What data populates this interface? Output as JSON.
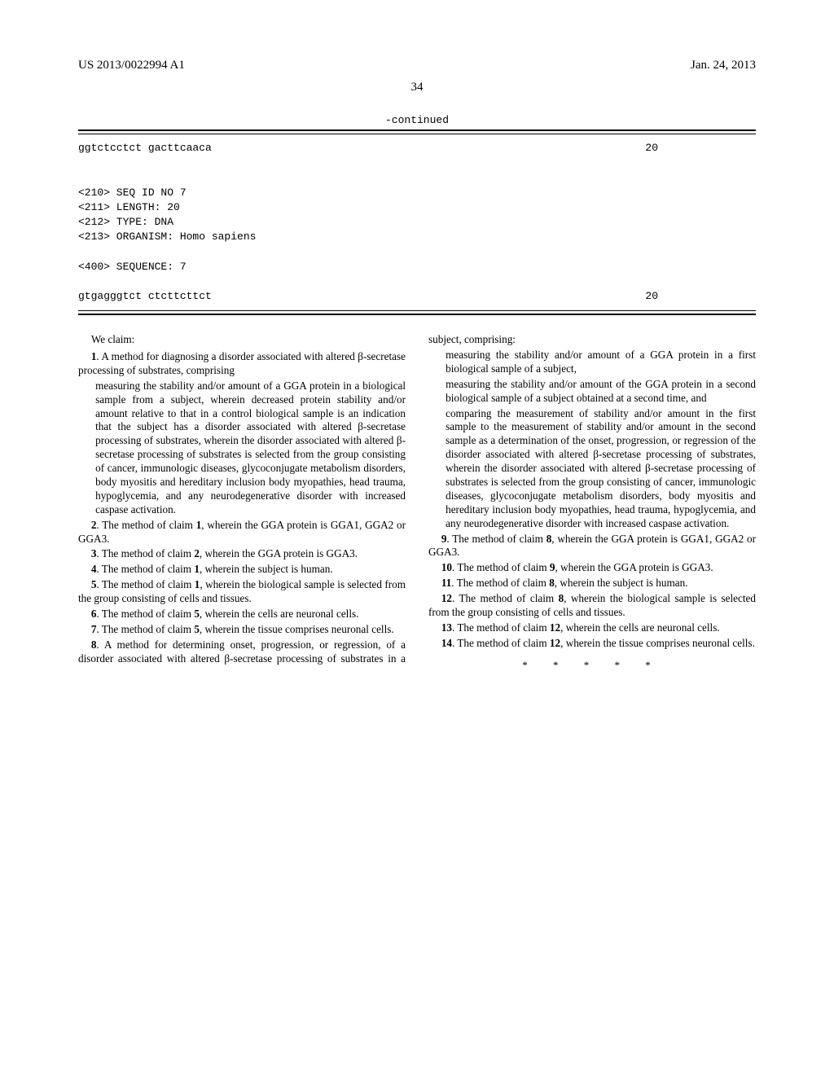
{
  "header": {
    "publication_number": "US 2013/0022994 A1",
    "date": "Jan. 24, 2013"
  },
  "page_number": "34",
  "sequence": {
    "continued_label": "-continued",
    "line1_seq": "ggtctcctct gacttcaaca",
    "line1_len": "20",
    "seq_id_tag": "<210> SEQ ID NO 7",
    "length_tag": "<211> LENGTH: 20",
    "type_tag": "<212> TYPE: DNA",
    "organism_tag": "<213> ORGANISM: Homo sapiens",
    "sequence_tag": "<400> SEQUENCE: 7",
    "line2_seq": "gtgagggtct ctcttcttct",
    "line2_len": "20"
  },
  "claims": {
    "intro": "We claim:",
    "c1_lead": "1. A method for diagnosing a disorder associated with altered β-secretase processing of substrates, comprising",
    "c1_body": "measuring the stability and/or amount of a GGA protein in a biological sample from a subject, wherein decreased protein stability and/or amount relative to that in a control biological sample is an indication that the subject has a disorder associated with altered β-secretase processing of substrates, wherein the disorder associated with altered β-secretase processing of substrates is selected from the group consisting of cancer, immunologic diseases, glycoconjugate metabolism disorders, body myositis and hereditary inclusion body myopathies, head trauma, hypoglycemia, and any neurodegenerative disorder with increased caspase activation.",
    "c2": "2. The method of claim 1, wherein the GGA protein is GGA1, GGA2 or GGA3.",
    "c3": "3. The method of claim 2, wherein the GGA protein is GGA3.",
    "c4": "4. The method of claim 1, wherein the subject is human.",
    "c5": "5. The method of claim 1, wherein the biological sample is selected from the group consisting of cells and tissues.",
    "c6": "6. The method of claim 5, wherein the cells are neuronal cells.",
    "c7": "7. The method of claim 5, wherein the tissue comprises neuronal cells.",
    "c8_lead": "8. A method for determining onset, progression, or regression, of a disorder associated with altered β-secretase processing of substrates in a subject, comprising:",
    "c8_a": "measuring the stability and/or amount of a GGA protein in a first biological sample of a subject,",
    "c8_b": "measuring the stability and/or amount of the GGA protein in a second biological sample of a subject obtained at a second time, and",
    "c8_c": "comparing the measurement of stability and/or amount in the first sample to the measurement of stability and/or amount in the second sample as a determination of the onset, progression, or regression of the disorder associated with altered β-secretase processing of substrates, wherein the disorder associated with altered β-secretase processing of substrates is selected from the group consisting of cancer, immunologic diseases, glycoconjugate metabolism disorders, body myositis and hereditary inclusion body myopathies, head trauma, hypoglycemia, and any neurodegenerative disorder with increased caspase activation.",
    "c9": "9. The method of claim 8, wherein the GGA protein is GGA1, GGA2 or GGA3.",
    "c10": "10. The method of claim 9, wherein the GGA protein is GGA3.",
    "c11": "11. The method of claim 8, wherein the subject is human.",
    "c12": "12. The method of claim 8, wherein the biological sample is selected from the group consisting of cells and tissues.",
    "c13": "13. The method of claim 12, wherein the cells are neuronal cells.",
    "c14": "14. The method of claim 12, wherein the tissue comprises neuronal cells.",
    "stars": "* * * * *"
  }
}
